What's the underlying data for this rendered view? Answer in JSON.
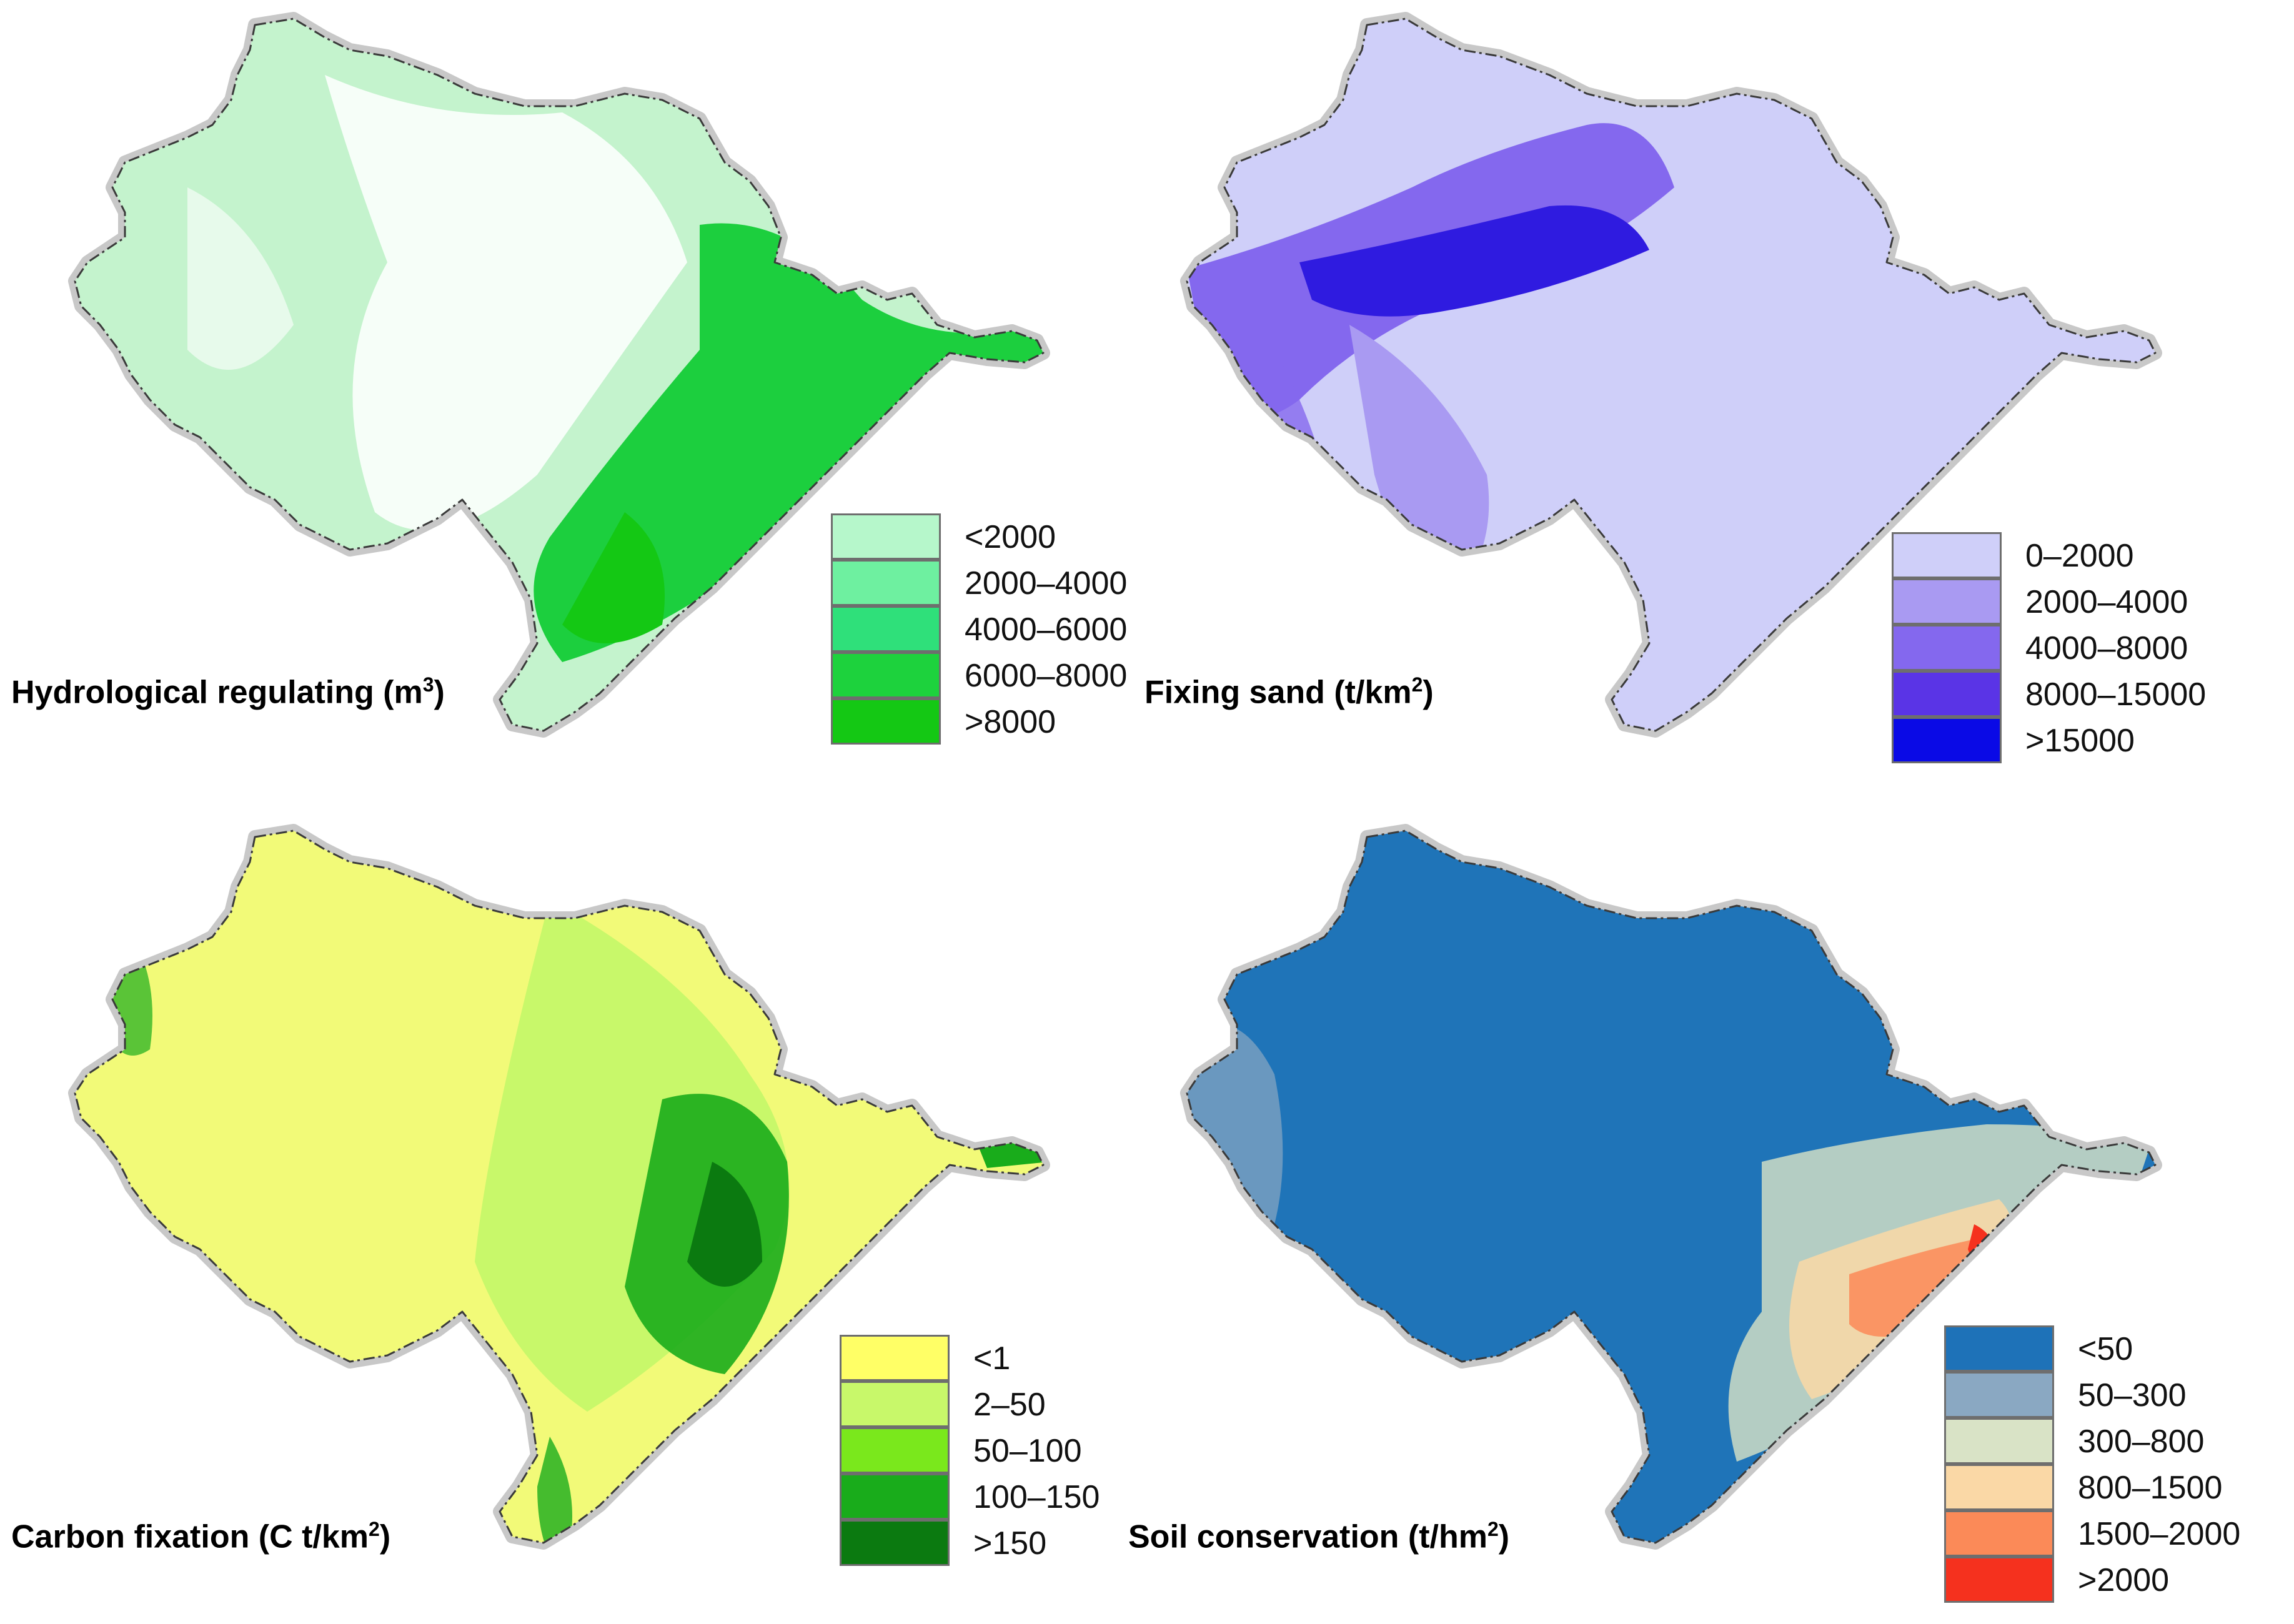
{
  "panels": [
    {
      "title": "Hydrological regulating (m",
      "title_sup": "3",
      "title_suffix": ")",
      "base_color": "#c9f5d3",
      "legend": [
        {
          "label": "<2000",
          "color": "#b6f7cb"
        },
        {
          "label": "2000–4000",
          "color": "#6ef0a0"
        },
        {
          "label": "4000–6000",
          "color": "#2fe07a"
        },
        {
          "label": "6000–8000",
          "color": "#1dd23d"
        },
        {
          "label": ">8000",
          "color": "#14c814"
        }
      ]
    },
    {
      "title": "Fixing sand (t/km",
      "title_sup": "2",
      "title_suffix": ")",
      "base_color": "#cfcff9",
      "legend": [
        {
          "label": "0–2000",
          "color": "#cfcff9"
        },
        {
          "label": "2000–4000",
          "color": "#a99af2"
        },
        {
          "label": "4000–8000",
          "color": "#8468ee"
        },
        {
          "label": "8000–15000",
          "color": "#5a34e6"
        },
        {
          "label": ">15000",
          "color": "#0a0ae6"
        }
      ]
    },
    {
      "title": "Carbon fixation (C t/km",
      "title_sup": "2",
      "title_suffix": ")",
      "base_color": "#f2fa7a",
      "legend": [
        {
          "label": "<1",
          "color": "#ffff66"
        },
        {
          "label": "2–50",
          "color": "#c8f86a"
        },
        {
          "label": "50–100",
          "color": "#7ae81c"
        },
        {
          "label": "100–150",
          "color": "#19ac1b"
        },
        {
          "label": ">150",
          "color": "#0b7a10"
        }
      ]
    },
    {
      "title": "Soil conservation (t/hm",
      "title_sup": "2",
      "title_suffix": ")",
      "base_color": "#2075b8",
      "legend": [
        {
          "label": "<50",
          "color": "#1e72b8"
        },
        {
          "label": "50–300",
          "color": "#8aa8c2"
        },
        {
          "label": "300–800",
          "color": "#d9e3c6"
        },
        {
          "label": "800–1500",
          "color": "#fad8a6"
        },
        {
          "label": "1500–2000",
          "color": "#fb8a58"
        },
        {
          "label": ">2000",
          "color": "#f5311e"
        }
      ]
    }
  ]
}
